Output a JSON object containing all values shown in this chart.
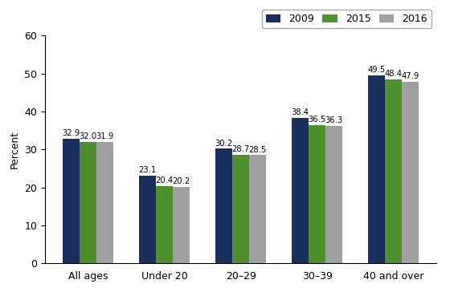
{
  "categories": [
    "All ages",
    "Under 20",
    "20–29",
    "30–39",
    "40 and over"
  ],
  "series": [
    {
      "label": "2009",
      "color": "#1a2f5e",
      "values": [
        32.9,
        23.1,
        30.2,
        38.4,
        49.5
      ]
    },
    {
      "label": "2015",
      "color": "#4e8f2e",
      "values": [
        32.0,
        20.4,
        28.7,
        36.5,
        48.4
      ]
    },
    {
      "label": "2016",
      "color": "#a0a0a0",
      "values": [
        31.9,
        20.2,
        28.5,
        36.3,
        47.9
      ]
    }
  ],
  "ylabel": "Percent",
  "ylim": [
    0,
    60
  ],
  "yticks": [
    0,
    10,
    20,
    30,
    40,
    50,
    60
  ],
  "bar_width": 0.22,
  "label_fontsize": 7.2,
  "axis_fontsize": 9,
  "tick_fontsize": 9,
  "legend_fontsize": 9,
  "background_color": "#ffffff",
  "figure_size": [
    5.6,
    3.69
  ],
  "dpi": 100
}
